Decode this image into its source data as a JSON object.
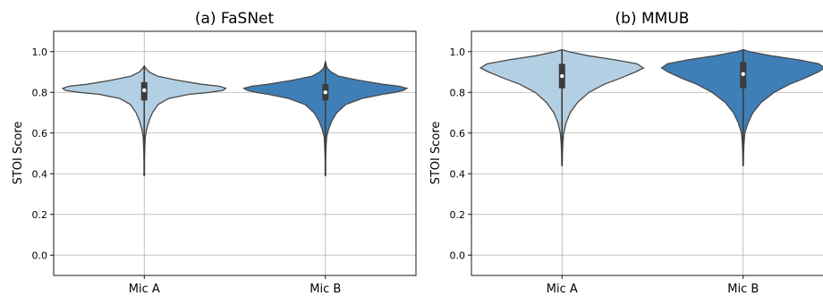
{
  "chart_data": [
    {
      "type": "violin",
      "title": "(a) FaSNet",
      "ylabel": "STOI Score",
      "ylim": [
        -0.1,
        1.1
      ],
      "yticks": [
        "0.0",
        "0.2",
        "0.4",
        "0.6",
        "0.8",
        "1.0"
      ],
      "grid": true,
      "categories": [
        "Mic A",
        "Mic B"
      ],
      "series": [
        {
          "category": "Mic A",
          "color": "#b3cfe4",
          "min": 0.39,
          "q1": 0.76,
          "median": 0.81,
          "q3": 0.85,
          "max": 0.93,
          "profile": [
            [
              0.39,
              0.003
            ],
            [
              0.45,
              0.003
            ],
            [
              0.5,
              0.005
            ],
            [
              0.54,
              0.008
            ],
            [
              0.58,
              0.013
            ],
            [
              0.62,
              0.03
            ],
            [
              0.66,
              0.06
            ],
            [
              0.7,
              0.1
            ],
            [
              0.74,
              0.17
            ],
            [
              0.77,
              0.3
            ],
            [
              0.79,
              0.55
            ],
            [
              0.8,
              0.8
            ],
            [
              0.81,
              0.97
            ],
            [
              0.82,
              1.0
            ],
            [
              0.83,
              0.92
            ],
            [
              0.84,
              0.7
            ],
            [
              0.86,
              0.4
            ],
            [
              0.88,
              0.16
            ],
            [
              0.9,
              0.06
            ],
            [
              0.92,
              0.015
            ],
            [
              0.93,
              0.0
            ]
          ]
        },
        {
          "category": "Mic B",
          "color": "#3f7fb8",
          "min": 0.39,
          "q1": 0.76,
          "median": 0.8,
          "q3": 0.84,
          "max": 0.95,
          "profile": [
            [
              0.39,
              0.003
            ],
            [
              0.45,
              0.003
            ],
            [
              0.5,
              0.005
            ],
            [
              0.54,
              0.009
            ],
            [
              0.58,
              0.015
            ],
            [
              0.62,
              0.04
            ],
            [
              0.66,
              0.08
            ],
            [
              0.7,
              0.14
            ],
            [
              0.74,
              0.25
            ],
            [
              0.77,
              0.45
            ],
            [
              0.79,
              0.7
            ],
            [
              0.8,
              0.85
            ],
            [
              0.81,
              0.96
            ],
            [
              0.82,
              1.0
            ],
            [
              0.83,
              0.9
            ],
            [
              0.84,
              0.7
            ],
            [
              0.86,
              0.4
            ],
            [
              0.88,
              0.16
            ],
            [
              0.9,
              0.07
            ],
            [
              0.92,
              0.02
            ],
            [
              0.95,
              0.0
            ]
          ]
        }
      ]
    },
    {
      "type": "violin",
      "title": "(b) MMUB",
      "ylabel": "STOI Score",
      "ylim": [
        -0.1,
        1.1
      ],
      "yticks": [
        "0.0",
        "0.2",
        "0.4",
        "0.6",
        "0.8",
        "1.0"
      ],
      "grid": true,
      "categories": [
        "Mic A",
        "Mic B"
      ],
      "series": [
        {
          "category": "Mic A",
          "color": "#b3cfe4",
          "min": 0.44,
          "q1": 0.82,
          "median": 0.88,
          "q3": 0.94,
          "max": 1.01,
          "profile": [
            [
              0.44,
              0.003
            ],
            [
              0.5,
              0.005
            ],
            [
              0.55,
              0.01
            ],
            [
              0.6,
              0.02
            ],
            [
              0.65,
              0.05
            ],
            [
              0.7,
              0.1
            ],
            [
              0.75,
              0.19
            ],
            [
              0.8,
              0.33
            ],
            [
              0.84,
              0.52
            ],
            [
              0.87,
              0.72
            ],
            [
              0.9,
              0.9
            ],
            [
              0.92,
              1.0
            ],
            [
              0.94,
              0.92
            ],
            [
              0.96,
              0.65
            ],
            [
              0.98,
              0.32
            ],
            [
              1.0,
              0.08
            ],
            [
              1.01,
              0.0
            ]
          ]
        },
        {
          "category": "Mic B",
          "color": "#3f7fb8",
          "min": 0.44,
          "q1": 0.82,
          "median": 0.89,
          "q3": 0.95,
          "max": 1.01,
          "profile": [
            [
              0.44,
              0.003
            ],
            [
              0.5,
              0.005
            ],
            [
              0.55,
              0.01
            ],
            [
              0.6,
              0.02
            ],
            [
              0.65,
              0.06
            ],
            [
              0.7,
              0.12
            ],
            [
              0.75,
              0.22
            ],
            [
              0.8,
              0.38
            ],
            [
              0.84,
              0.57
            ],
            [
              0.87,
              0.76
            ],
            [
              0.9,
              0.92
            ],
            [
              0.92,
              1.0
            ],
            [
              0.94,
              0.93
            ],
            [
              0.96,
              0.68
            ],
            [
              0.98,
              0.34
            ],
            [
              1.0,
              0.08
            ],
            [
              1.01,
              0.0
            ]
          ]
        }
      ]
    }
  ]
}
